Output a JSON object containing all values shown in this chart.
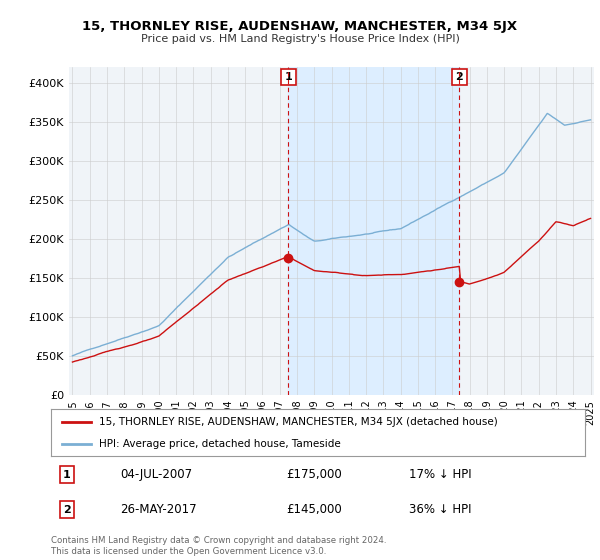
{
  "title": "15, THORNLEY RISE, AUDENSHAW, MANCHESTER, M34 5JX",
  "subtitle": "Price paid vs. HM Land Registry's House Price Index (HPI)",
  "hpi_color": "#7bafd4",
  "price_color": "#cc1111",
  "shade_color": "#ddeeff",
  "background_color": "#f0f4f8",
  "grid_color": "#cccccc",
  "ylim": [
    0,
    420000
  ],
  "yticks": [
    0,
    50000,
    100000,
    150000,
    200000,
    250000,
    300000,
    350000,
    400000
  ],
  "ytick_labels": [
    "£0",
    "£50K",
    "£100K",
    "£150K",
    "£200K",
    "£250K",
    "£300K",
    "£350K",
    "£400K"
  ],
  "legend_entries": [
    "15, THORNLEY RISE, AUDENSHAW, MANCHESTER, M34 5JX (detached house)",
    "HPI: Average price, detached house, Tameside"
  ],
  "annotation1": {
    "label": "1",
    "date": "04-JUL-2007",
    "price": "£175,000",
    "pct": "17% ↓ HPI"
  },
  "annotation2": {
    "label": "2",
    "date": "26-MAY-2017",
    "price": "£145,000",
    "pct": "36% ↓ HPI"
  },
  "footer": "Contains HM Land Registry data © Crown copyright and database right 2024.\nThis data is licensed under the Open Government Licence v3.0.",
  "sale1_x": 2007.5,
  "sale1_y": 175000,
  "sale2_x": 2017.4,
  "sale2_y": 145000,
  "xlim_left": 1994.8,
  "xlim_right": 2025.2
}
